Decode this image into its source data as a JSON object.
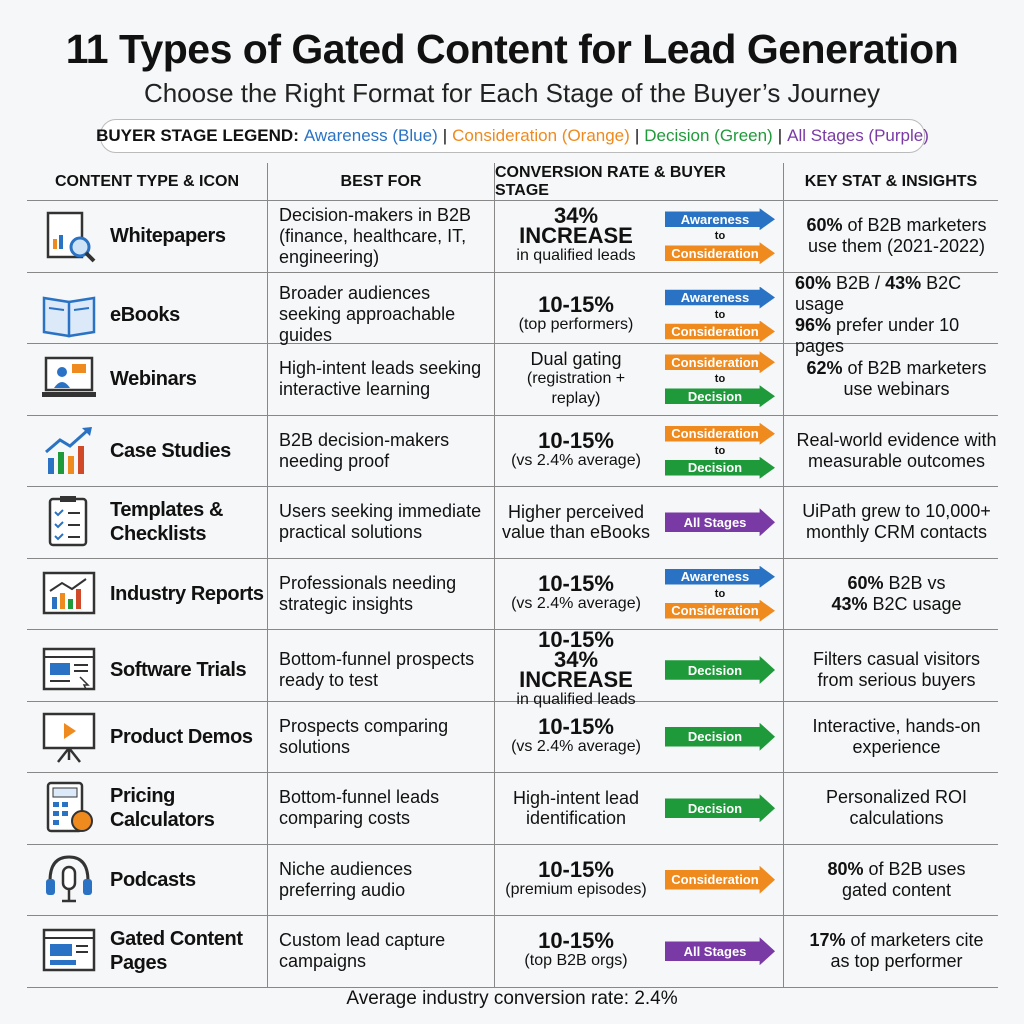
{
  "header": {
    "title": "11 Types of Gated Content for Lead Generation",
    "subtitle": "Choose the Right Format for Each Stage of the Buyer’s Journey"
  },
  "legend": {
    "label": "BUYER STAGE LEGEND:",
    "separator": "|",
    "items": [
      {
        "text": "Awareness (Blue)",
        "color": "#2a73c4"
      },
      {
        "text": "Consideration (Orange)",
        "color": "#ee8a1e"
      },
      {
        "text": "Decision (Green)",
        "color": "#1f9a3a"
      },
      {
        "text": "All Stages (Purple)",
        "color": "#7a3aa6"
      }
    ]
  },
  "stage_colors": {
    "Awareness": "#2a73c4",
    "Consideration": "#ee8a1e",
    "Decision": "#1f9a3a",
    "All Stages": "#7a3aa6"
  },
  "table": {
    "columns": [
      "CONTENT TYPE & ICON",
      "BEST FOR",
      "CONVERSION RATE & BUYER STAGE",
      "KEY STAT & INSIGHTS"
    ],
    "connector": "to",
    "rows": [
      {
        "name": "Whitepapers",
        "best_for": "Decision-makers in B2B (finance, healthcare, IT, engineering)",
        "conversion": [
          {
            "text": "34% INCREASE",
            "style": "big"
          },
          {
            "text": "in qualified leads",
            "style": "small"
          }
        ],
        "stages": [
          "Awareness",
          "Consideration"
        ],
        "stat": [
          [
            {
              "t": "60%",
              "b": true
            },
            {
              "t": " of B2B marketers"
            }
          ],
          [
            {
              "t": "use them (2021-2022)"
            }
          ]
        ]
      },
      {
        "name": "eBooks",
        "best_for": "Broader audiences seeking approachable guides",
        "conversion": [
          {
            "text": "10-15%",
            "style": "big"
          },
          {
            "text": "(top performers)",
            "style": "small"
          }
        ],
        "stages": [
          "Awareness",
          "Consideration"
        ],
        "stat": [
          [
            {
              "t": "60%",
              "b": true
            },
            {
              "t": " B2B / "
            },
            {
              "t": "43%",
              "b": true
            },
            {
              "t": " B2C usage"
            }
          ],
          [
            {
              "t": "96%",
              "b": true
            },
            {
              "t": " prefer under 10 pages"
            }
          ]
        ]
      },
      {
        "name": "Webinars",
        "best_for": "High-intent leads seeking interactive learning",
        "conversion": [
          {
            "text": "Dual gating",
            "style": "normal"
          },
          {
            "text": "(registration + replay)",
            "style": "small"
          }
        ],
        "stages": [
          "Consideration",
          "Decision"
        ],
        "stat": [
          [
            {
              "t": "62%",
              "b": true
            },
            {
              "t": " of B2B marketers"
            }
          ],
          [
            {
              "t": "use webinars"
            }
          ]
        ]
      },
      {
        "name": "Case Studies",
        "best_for": "B2B decision-makers needing proof",
        "conversion": [
          {
            "text": "10-15%",
            "style": "big"
          },
          {
            "text": "(vs 2.4% average)",
            "style": "small"
          }
        ],
        "stages": [
          "Consideration",
          "Decision"
        ],
        "stat": [
          [
            {
              "t": "Real-world evidence with"
            }
          ],
          [
            {
              "t": "measurable outcomes"
            }
          ]
        ]
      },
      {
        "name": "Templates & Checklists",
        "best_for": "Users seeking immediate practical solutions",
        "conversion": [
          {
            "text": "Higher perceived",
            "style": "normal"
          },
          {
            "text": "value than eBooks",
            "style": "normal"
          }
        ],
        "stages": [
          "All Stages"
        ],
        "stat": [
          [
            {
              "t": "UiPath grew to 10,000+"
            }
          ],
          [
            {
              "t": "monthly CRM contacts"
            }
          ]
        ]
      },
      {
        "name": "Industry Reports",
        "best_for": "Professionals needing strategic insights",
        "conversion": [
          {
            "text": "10-15%",
            "style": "big"
          },
          {
            "text": "(vs 2.4% average)",
            "style": "small"
          }
        ],
        "stages": [
          "Awareness",
          "Consideration"
        ],
        "stat": [
          [
            {
              "t": "60%",
              "b": true
            },
            {
              "t": " B2B vs"
            }
          ],
          [
            {
              "t": "43%",
              "b": true
            },
            {
              "t": " B2C usage"
            }
          ]
        ]
      },
      {
        "name": "Software Trials",
        "best_for": "Bottom-funnel prospects ready to test",
        "conversion": [
          {
            "text": "10-15%",
            "style": "big"
          },
          {
            "text": "34% INCREASE",
            "style": "big"
          },
          {
            "text": "in qualified leads",
            "style": "small"
          }
        ],
        "stages": [
          "Decision"
        ],
        "stat": [
          [
            {
              "t": "Filters casual visitors"
            }
          ],
          [
            {
              "t": "from serious buyers"
            }
          ]
        ]
      },
      {
        "name": "Product Demos",
        "best_for": "Prospects comparing solutions",
        "conversion": [
          {
            "text": "10-15%",
            "style": "big"
          },
          {
            "text": "(vs 2.4% average)",
            "style": "small"
          }
        ],
        "stages": [
          "Decision"
        ],
        "stat": [
          [
            {
              "t": "Interactive, hands-on"
            }
          ],
          [
            {
              "t": "experience"
            }
          ]
        ]
      },
      {
        "name": "Pricing Calculators",
        "best_for": "Bottom-funnel leads comparing costs",
        "conversion": [
          {
            "text": "High-intent lead",
            "style": "normal"
          },
          {
            "text": "identification",
            "style": "normal"
          }
        ],
        "stages": [
          "Decision"
        ],
        "stat": [
          [
            {
              "t": "Personalized ROI"
            }
          ],
          [
            {
              "t": "calculations"
            }
          ]
        ]
      },
      {
        "name": "Podcasts",
        "best_for": "Niche audiences preferring audio",
        "conversion": [
          {
            "text": "10-15%",
            "style": "big"
          },
          {
            "text": "(premium episodes)",
            "style": "small"
          }
        ],
        "stages": [
          "Consideration"
        ],
        "stat": [
          [
            {
              "t": "80%",
              "b": true
            },
            {
              "t": " of B2B uses"
            }
          ],
          [
            {
              "t": "gated content"
            }
          ]
        ]
      },
      {
        "name": "Gated Content Pages",
        "best_for": "Custom lead capture campaigns",
        "conversion": [
          {
            "text": "10-15%",
            "style": "big"
          },
          {
            "text": "(top B2B orgs)",
            "style": "small"
          }
        ],
        "stages": [
          "All Stages"
        ],
        "stat": [
          [
            {
              "t": "17%",
              "b": true
            },
            {
              "t": " of marketers cite"
            }
          ],
          [
            {
              "t": "as top performer"
            }
          ]
        ]
      }
    ]
  },
  "footer": "Average industry conversion rate: 2.4%"
}
